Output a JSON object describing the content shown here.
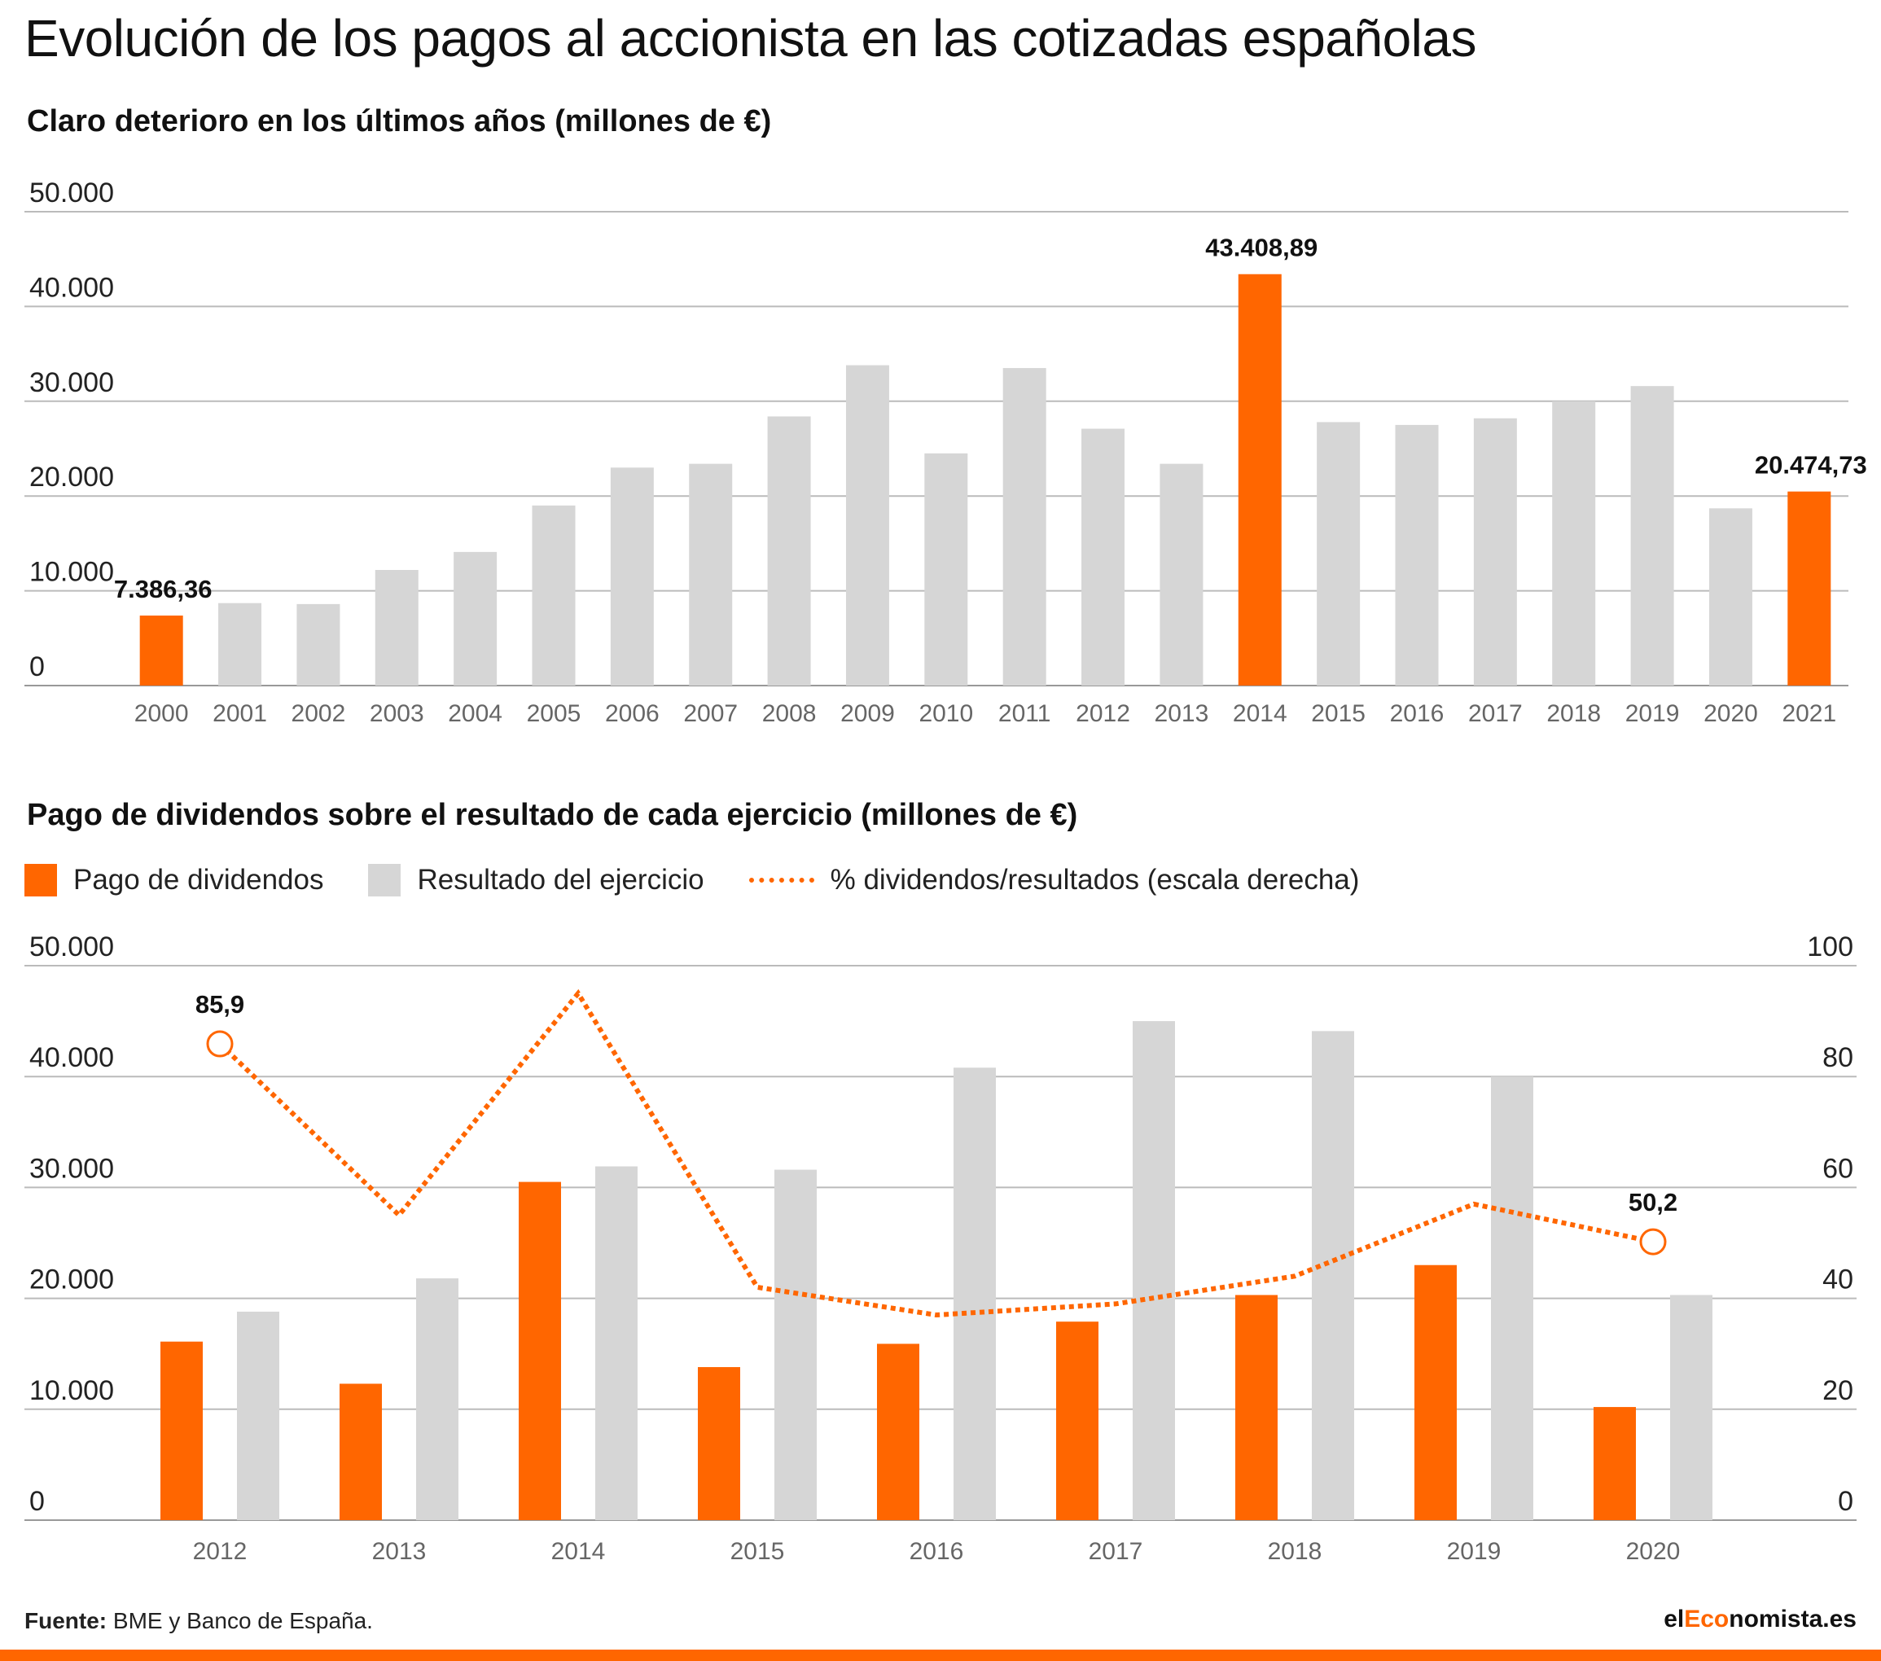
{
  "title": "Evolución de los pagos al accionista en las cotizadas españolas",
  "source_label": "Fuente:",
  "source_text": " BME y Banco de España.",
  "logo": {
    "prefix": "el",
    "accent": "Eco",
    "suffix": "nomista.es"
  },
  "colors": {
    "highlight": "#ff6600",
    "base": "#d6d6d6",
    "grid": "#bbbbbb",
    "axis_text": "#666666"
  },
  "chart_data": [
    {
      "type": "bar",
      "title": "Claro deterioro en los últimos años (millones de €)",
      "categories": [
        "2000",
        "2001",
        "2002",
        "2003",
        "2004",
        "2005",
        "2006",
        "2007",
        "2008",
        "2009",
        "2010",
        "2011",
        "2012",
        "2013",
        "2014",
        "2015",
        "2016",
        "2017",
        "2018",
        "2019",
        "2020",
        "2021"
      ],
      "values": [
        7386.36,
        8700,
        8600,
        12200,
        14100,
        19000,
        23000,
        23400,
        28400,
        33800,
        24500,
        33500,
        27100,
        23400,
        43408.89,
        27800,
        27500,
        28200,
        30000,
        31600,
        18700,
        20474.73
      ],
      "highlighted": [
        "2000",
        "2014",
        "2021"
      ],
      "data_labels": {
        "2000": "7.386,36",
        "2014": "43.408,89",
        "2021": "20.474,73"
      },
      "ylim": [
        0,
        50000
      ],
      "yticks": [
        0,
        10000,
        20000,
        30000,
        40000,
        50000
      ],
      "ytick_labels": [
        "0",
        "10.000",
        "20.000",
        "30.000",
        "40.000",
        "50.000"
      ],
      "grid": true
    },
    {
      "type": "bar",
      "title": "Pago de dividendos sobre el resultado de cada ejercicio (millones de €)",
      "categories": [
        "2012",
        "2013",
        "2014",
        "2015",
        "2016",
        "2017",
        "2018",
        "2019",
        "2020"
      ],
      "series": [
        {
          "name": "Pago de dividendos",
          "values": [
            16100,
            12300,
            30500,
            13800,
            15900,
            17900,
            20300,
            23000,
            10200
          ],
          "color": "#ff6600"
        },
        {
          "name": "Resultado del ejercicio",
          "values": [
            18800,
            21800,
            31900,
            31600,
            40800,
            45000,
            44100,
            40000,
            20300
          ],
          "color": "#d6d6d6"
        }
      ],
      "line_series": {
        "name": "% dividendos/resultados (escala derecha)",
        "axis": "right",
        "values": [
          85.9,
          55,
          95,
          42,
          37,
          39,
          44,
          57,
          50.2
        ],
        "color": "#ff6600",
        "style": "dotted"
      },
      "line_labels": {
        "2012": "85,9",
        "2020": "50,2"
      },
      "ylim": [
        0,
        50000
      ],
      "yticks": [
        0,
        10000,
        20000,
        30000,
        40000,
        50000
      ],
      "ytick_labels": [
        "0",
        "10.000",
        "20.000",
        "30.000",
        "40.000",
        "50.000"
      ],
      "y2lim": [
        0,
        100
      ],
      "y2ticks": [
        0,
        20,
        40,
        60,
        80,
        100
      ],
      "y2tick_labels": [
        "0",
        "20",
        "40",
        "60",
        "80",
        "100"
      ],
      "legend_position": "top-left",
      "grid": true
    }
  ]
}
